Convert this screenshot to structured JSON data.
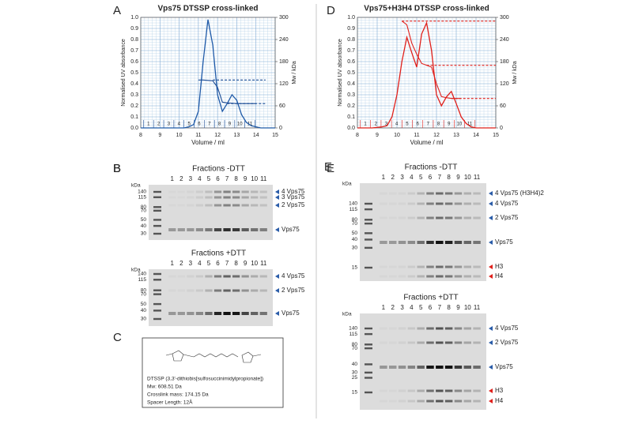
{
  "chart_data": [
    {
      "type": "line",
      "panel": "A",
      "title": "Vps75 DTSSP cross-linked",
      "title_color": "#1f4e96",
      "xlabel": "Volume / ml",
      "ylabel": "Normalised UV absorbance",
      "y2label": "Mw / kDa",
      "x": [
        8,
        8.25,
        8.5,
        8.75,
        9,
        9.25,
        9.5,
        9.75,
        10,
        10.25,
        10.5,
        10.75,
        11,
        11.25,
        11.5,
        11.75,
        12,
        12.25,
        12.5,
        12.75,
        13,
        13.25,
        13.5,
        13.75,
        14,
        14.25,
        14.5,
        14.75,
        15
      ],
      "xlim": [
        8,
        15
      ],
      "xticks": [
        8,
        9,
        10,
        11,
        12,
        13,
        14,
        15
      ],
      "ylim": [
        0,
        1
      ],
      "yticks": [
        {
          "value": 0,
          "label": "0.0"
        },
        0.1,
        0.2,
        0.3,
        0.4,
        0.5,
        0.6,
        0.7,
        0.8,
        0.9,
        {
          "value": 1,
          "label": "1.0"
        }
      ],
      "y2lim": [
        0,
        300
      ],
      "y2ticks": [
        0,
        60,
        120,
        180,
        240,
        300
      ],
      "grid": true,
      "fractions": [
        "1",
        "2",
        "3",
        "4",
        "5",
        "6",
        "7",
        "8",
        "9",
        "10",
        "11"
      ],
      "fraction_color": "#1f4e96",
      "series": [
        {
          "color": "#1f5aa8",
          "values": [
            0,
            0,
            0,
            0,
            0,
            0,
            0,
            0,
            0,
            0,
            0.01,
            0.03,
            0.15,
            0.6,
            0.98,
            0.75,
            0.3,
            0.15,
            0.22,
            0.3,
            0.25,
            0.12,
            0.05,
            0.02,
            0.01,
            0,
            0,
            0,
            0
          ]
        },
        {
          "color": "#1f4e96",
          "axis": "y2",
          "values": [
            null,
            null,
            null,
            null,
            null,
            null,
            null,
            null,
            null,
            null,
            null,
            null,
            130,
            130,
            129,
            128,
            110,
            70,
            68,
            67,
            66,
            66,
            66,
            66,
            66,
            null,
            null,
            null,
            null
          ]
        }
      ],
      "reference_lines": [
        {
          "y2": 130,
          "x": [
            11.75,
            14.5
          ],
          "color": "#1f4e96"
        },
        {
          "y2": 66,
          "x": [
            12.5,
            14.5
          ],
          "color": "#1f4e96"
        }
      ]
    },
    {
      "type": "line",
      "panel": "D",
      "title": "Vps75+H3H4 DTSSP cross-linked",
      "title_color": "#e0201b",
      "xlabel": "Volume / ml",
      "ylabel": "Normalised UV absorbance",
      "y2label": "Mw / kDa",
      "x": [
        8,
        8.25,
        8.5,
        8.75,
        9,
        9.25,
        9.5,
        9.75,
        10,
        10.25,
        10.5,
        10.75,
        11,
        11.25,
        11.5,
        11.75,
        12,
        12.25,
        12.5,
        12.75,
        13,
        13.25,
        13.5,
        13.75,
        14,
        14.25,
        14.5,
        14.75,
        15
      ],
      "xlim": [
        8,
        15
      ],
      "xticks": [
        8,
        9,
        10,
        11,
        12,
        13,
        14,
        15
      ],
      "ylim": [
        0,
        1
      ],
      "yticks": [
        {
          "value": 0,
          "label": "0.0"
        },
        0.1,
        0.2,
        0.3,
        0.4,
        0.5,
        0.6,
        0.7,
        0.8,
        0.9,
        {
          "value": 1,
          "label": "1.0"
        }
      ],
      "y2lim": [
        0,
        300
      ],
      "y2ticks": [
        0,
        60,
        120,
        180,
        240,
        300
      ],
      "grid": true,
      "fractions": [
        "1",
        "2",
        "3",
        "4",
        "5",
        "6",
        "7",
        "8",
        "9",
        "10",
        "11"
      ],
      "fraction_color": "#e0201b",
      "series": [
        {
          "color": "#e0201b",
          "values": [
            0,
            0,
            0,
            0,
            0.005,
            0.01,
            0.02,
            0.1,
            0.3,
            0.6,
            0.82,
            0.68,
            0.55,
            0.85,
            0.95,
            0.7,
            0.3,
            0.2,
            0.28,
            0.33,
            0.22,
            0.1,
            0.04,
            0.01,
            0,
            0,
            0,
            0,
            0
          ]
        },
        {
          "color": "#e0201b",
          "axis": "y2",
          "values": [
            null,
            null,
            null,
            null,
            null,
            null,
            null,
            null,
            null,
            290,
            280,
            230,
            200,
            175,
            170,
            165,
            120,
            85,
            82,
            80,
            80,
            80,
            null,
            null,
            null,
            null,
            null,
            null,
            null
          ]
        }
      ],
      "reference_lines": [
        {
          "y2": 290,
          "x": [
            10.25,
            15
          ],
          "color": "#e0201b"
        },
        {
          "y2": 170,
          "x": [
            11.5,
            15
          ],
          "color": "#e0201b"
        },
        {
          "y2": 80,
          "x": [
            12.75,
            15
          ],
          "color": "#e0201b"
        }
      ]
    }
  ],
  "gels": [
    {
      "panel": "B",
      "title": "Fractions -DTT",
      "unit": "kDa",
      "lanes": [
        "1",
        "2",
        "3",
        "4",
        "5",
        "6",
        "7",
        "8",
        "9",
        "10",
        "11"
      ],
      "markers": [
        140,
        115,
        80,
        70,
        50,
        40,
        30
      ],
      "arrows": [
        {
          "label": "4 Vps75",
          "color": "#2a5ca8"
        },
        {
          "label": "3 Vps75",
          "color": "#2a5ca8"
        },
        {
          "label": "2 Vps75",
          "color": "#2a5ca8"
        },
        {
          "label": "Vps75",
          "color": "#2a5ca8"
        }
      ]
    },
    {
      "title": "Fractions +DTT",
      "unit": "kDa",
      "lanes": [
        "1",
        "2",
        "3",
        "4",
        "5",
        "6",
        "7",
        "8",
        "9",
        "10",
        "11"
      ],
      "markers": [
        140,
        115,
        80,
        70,
        50,
        40,
        30
      ],
      "arrows": [
        {
          "label": "4 Vps75",
          "color": "#2a5ca8"
        },
        {
          "label": "2 Vps75",
          "color": "#2a5ca8"
        },
        {
          "label": "Vps75",
          "color": "#2a5ca8"
        }
      ]
    },
    {
      "panel": "E",
      "title": "Fractions -DTT",
      "unit": "kDa",
      "lanes": [
        "1",
        "2",
        "3",
        "4",
        "5",
        "6",
        "7",
        "8",
        "9",
        "10",
        "11"
      ],
      "markers": [
        140,
        115,
        80,
        70,
        50,
        40,
        30,
        15
      ],
      "arrows": [
        {
          "label": "4 Vps75 (H3H4)2",
          "color": "#2a5ca8"
        },
        {
          "label": "4 Vps75",
          "color": "#2a5ca8"
        },
        {
          "label": "2 Vps75",
          "color": "#2a5ca8"
        },
        {
          "label": "Vps75",
          "color": "#2a5ca8"
        },
        {
          "label": "H3",
          "color": "#e0201b"
        },
        {
          "label": "H4",
          "color": "#e0201b"
        }
      ]
    },
    {
      "title": "Fractions +DTT",
      "unit": "kDa",
      "lanes": [
        "1",
        "2",
        "3",
        "4",
        "5",
        "6",
        "7",
        "8",
        "9",
        "10",
        "11"
      ],
      "markers": [
        140,
        115,
        80,
        70,
        40,
        30,
        25,
        15
      ],
      "arrows": [
        {
          "label": "4 Vps75",
          "color": "#2a5ca8"
        },
        {
          "label": "2 Vps75",
          "color": "#2a5ca8"
        },
        {
          "label": "Vps75",
          "color": "#2a5ca8"
        },
        {
          "label": "H3",
          "color": "#e0201b"
        },
        {
          "label": "H4",
          "color": "#e0201b"
        }
      ]
    }
  ],
  "crosslinker": {
    "panel": "C",
    "name": "DTSSP (3,3'-dithiobis[sulfosuccinimidylpropionate])",
    "mw": "Mw: 608.51 Da",
    "crosslink_mass": "Crosslink mass: 174.15 Da",
    "spacer": "Spacer Length: 12Å"
  }
}
